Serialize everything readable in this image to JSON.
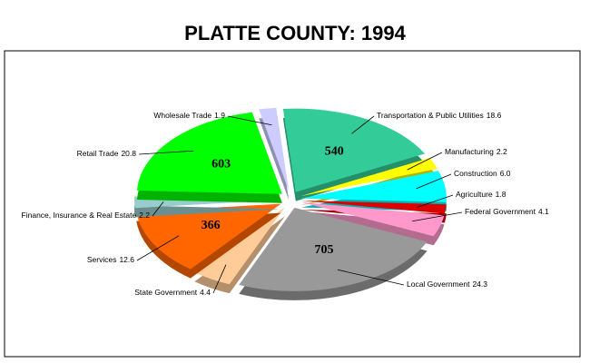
{
  "chart_data": {
    "type": "pie",
    "title": "PLATTE COUNTY:   1994",
    "categories": [
      "Transportation & Public Utilities",
      "Manufacturing",
      "Construction",
      "Agriculture",
      "Federal Government",
      "Local Government",
      "State Government",
      "Services",
      "Finance, Insurance & Real Estate",
      "Retail Trade",
      "Wholesale Trade"
    ],
    "values": [
      18.6,
      2.2,
      6.0,
      1.8,
      4.1,
      24.3,
      4.4,
      12.6,
      2.2,
      20.8,
      1.9
    ],
    "value_labels": [
      "18.6",
      "2.2",
      "6.0",
      "1.8",
      "4.1",
      "24.3",
      "4.4",
      "12.6",
      "2.2",
      "20.8",
      "1.9"
    ],
    "counts": [
      540,
      null,
      null,
      null,
      null,
      705,
      null,
      366,
      null,
      603,
      null
    ],
    "colors": [
      "#33cc99",
      "#ffff00",
      "#00ffff",
      "#dd0000",
      "#ff99cc",
      "#999999",
      "#ffcc99",
      "#ff6600",
      "#99cccc",
      "#00ff00",
      "#ccccff"
    ]
  }
}
